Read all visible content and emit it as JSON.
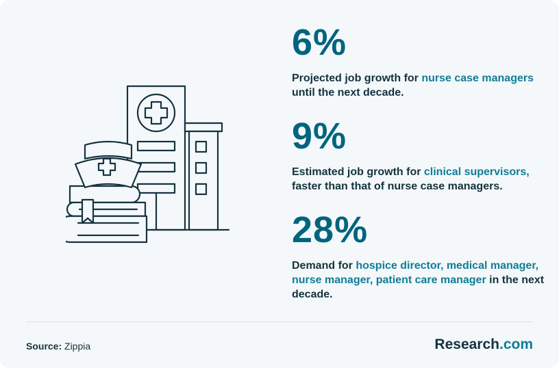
{
  "colors": {
    "accent": "#00647e",
    "highlight": "#0f7d96",
    "text": "#14323e",
    "background": "#f4f8fa",
    "icon_stroke": "#16323f"
  },
  "illustration": {
    "icons": [
      "hospital-building-icon",
      "medical-cross-icon",
      "nurse-cap-icon",
      "books-icon",
      "bookmark-icon"
    ]
  },
  "stats": [
    {
      "value": "6%",
      "desc_pre": "Projected job growth for  ",
      "desc_hl": "nurse case managers",
      "desc_post": " until the next decade."
    },
    {
      "value": "9%",
      "desc_pre": "Estimated job growth for ",
      "desc_hl": "clinical supervisors,",
      "desc_post": " faster than that of nurse case managers."
    },
    {
      "value": "28%",
      "desc_pre": "Demand for ",
      "desc_hl": "hospice director, medical manager, nurse manager, patient care manager",
      "desc_post": " in the next decade."
    }
  ],
  "footer": {
    "source_label": "Source:",
    "source_value": " Zippia",
    "brand_name": "Research",
    "brand_tld": ".com"
  }
}
